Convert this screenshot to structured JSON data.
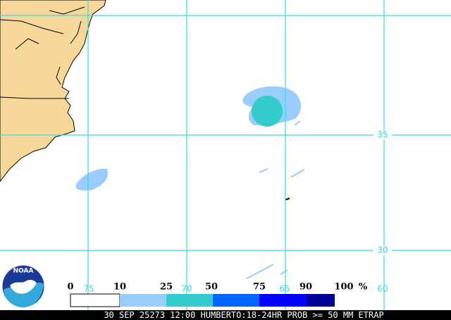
{
  "map": {
    "lat_labels": [
      "35",
      "30"
    ],
    "lon_labels": [
      "75",
      "70",
      "65",
      "60"
    ],
    "logo": "NOAA",
    "legend": {
      "labels": [
        "0",
        "10",
        "25",
        "50",
        "75",
        "90",
        "100"
      ],
      "unit": "%"
    },
    "footer": "30 SEP 25273 12:00 HUMBERTO:18-24HR PROB >= 50 MM ETRAP"
  }
}
